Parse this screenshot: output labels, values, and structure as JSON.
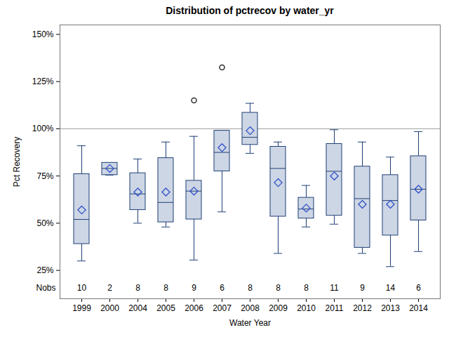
{
  "chart_data": {
    "type": "box",
    "title": "Distribution of pctrecov by water_yr",
    "x_label": "Water Year",
    "y_label": "Pct Recovery",
    "categories": [
      "1999",
      "2000",
      "2004",
      "2005",
      "2006",
      "2007",
      "2008",
      "2009",
      "2010",
      "2011",
      "2012",
      "2013",
      "2014"
    ],
    "min": [
      30,
      75.5,
      50,
      48,
      30.5,
      56,
      87,
      34,
      48,
      49.5,
      34,
      27,
      35
    ],
    "q1": [
      39,
      75.5,
      57,
      50.5,
      52,
      77.5,
      91.5,
      53.5,
      52.5,
      54,
      37,
      43.5,
      51.5
    ],
    "median": [
      52,
      79,
      65.5,
      61,
      67,
      87.5,
      95.5,
      79,
      57.5,
      77.5,
      63,
      62,
      68
    ],
    "q3": [
      76,
      82,
      76.5,
      84.5,
      72.5,
      99,
      108.5,
      90.5,
      63.5,
      92,
      80,
      75.5,
      85.5
    ],
    "max": [
      91,
      82,
      84,
      93,
      96,
      99,
      113.5,
      93,
      70,
      99.5,
      93,
      85,
      98.5
    ],
    "mean": [
      57,
      79,
      66.5,
      66.5,
      67,
      90,
      99,
      71.5,
      58,
      75,
      60,
      60,
      68
    ],
    "outliers": [
      [],
      [],
      [],
      [],
      [
        115
      ],
      [
        132.5
      ],
      [],
      [],
      [],
      [],
      [],
      [],
      []
    ],
    "nobs": [
      10,
      2,
      8,
      8,
      9,
      6,
      8,
      8,
      8,
      11,
      9,
      14,
      6
    ],
    "nobs_label": "Nobs",
    "reference_line": 100,
    "color": "#cdd6e4",
    "ylim": [
      10,
      155
    ],
    "yticks": [
      {
        "value": 25,
        "label": "25%"
      },
      {
        "value": 50,
        "label": "50%"
      },
      {
        "value": 75,
        "label": "75%"
      },
      {
        "value": 100,
        "label": "100%"
      },
      {
        "value": 125,
        "label": "125%"
      },
      {
        "value": 150,
        "label": "150%"
      }
    ],
    "grid": false
  }
}
